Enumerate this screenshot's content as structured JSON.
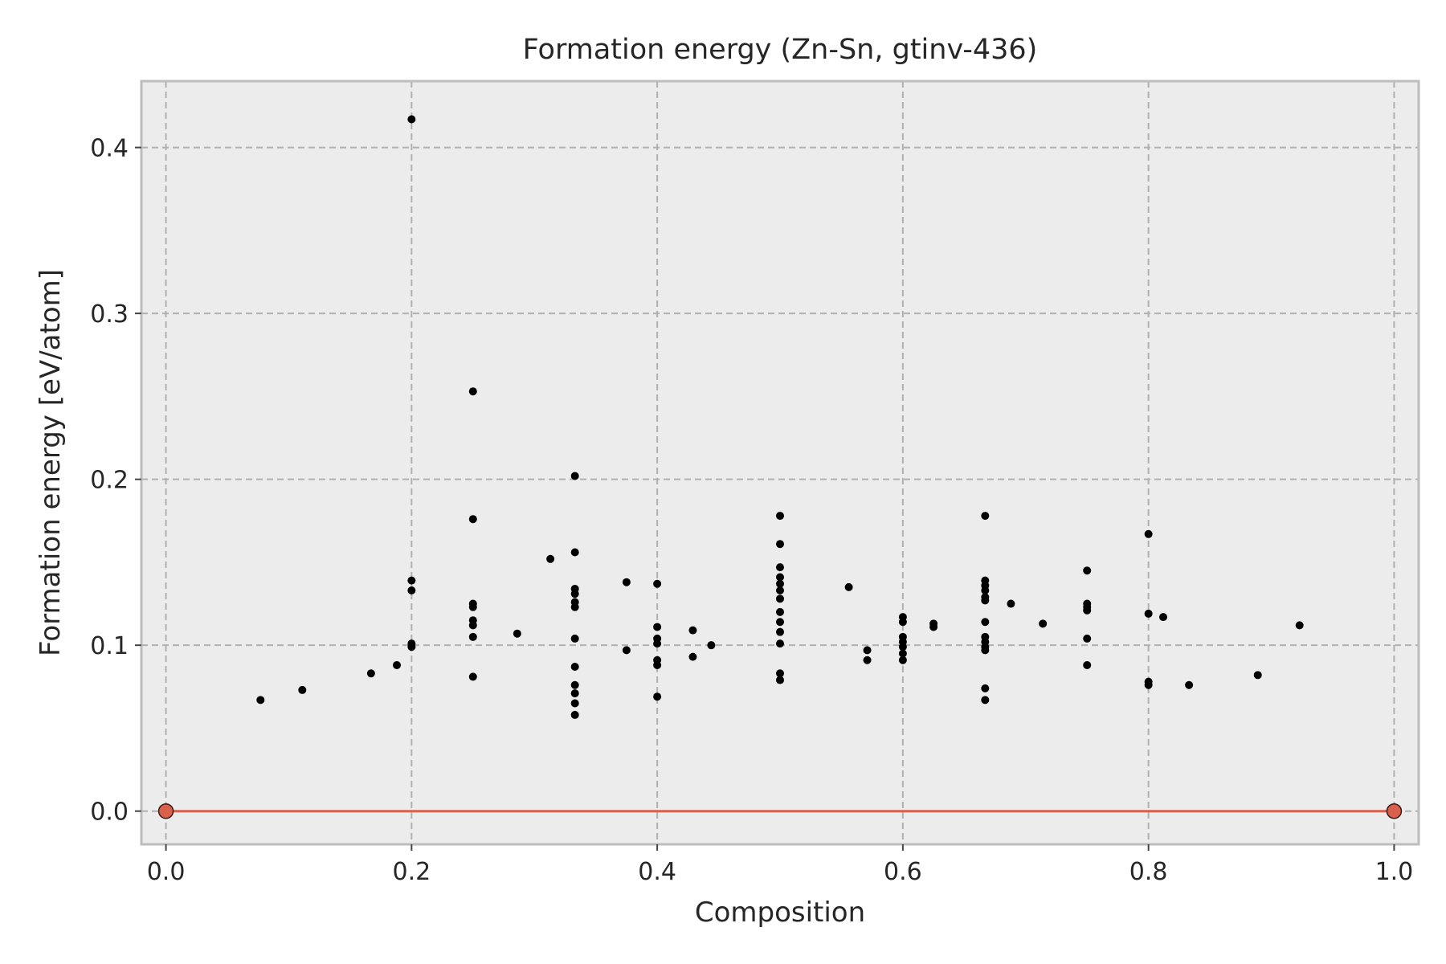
{
  "chart_data": {
    "type": "scatter",
    "title": "Formation energy (Zn-Sn, gtinv-436)",
    "xlabel": "Composition",
    "ylabel": "Formation energy [eV/atom]",
    "xlim": [
      -0.02,
      1.02
    ],
    "ylim": [
      -0.02,
      0.44
    ],
    "xticks": [
      0.0,
      0.2,
      0.4,
      0.6,
      0.8,
      1.0
    ],
    "xtick_labels": [
      "0.0",
      "0.2",
      "0.4",
      "0.6",
      "0.8",
      "1.0"
    ],
    "yticks": [
      0.0,
      0.1,
      0.2,
      0.3,
      0.4
    ],
    "ytick_labels": [
      "0.0",
      "0.1",
      "0.2",
      "0.3",
      "0.4"
    ],
    "grid": true,
    "colors": {
      "background": "#ececec",
      "grid": "#b0b0b0",
      "points": "#000000",
      "hull": "#d9604c",
      "hull_edge": "#3a1a14",
      "frame": "#bdbdbd"
    },
    "series": [
      {
        "type": "scatter",
        "points": [
          [
            0.077,
            0.067
          ],
          [
            0.111,
            0.073
          ],
          [
            0.167,
            0.083
          ],
          [
            0.188,
            0.088
          ],
          [
            0.2,
            0.417
          ],
          [
            0.2,
            0.139
          ],
          [
            0.2,
            0.133
          ],
          [
            0.2,
            0.101
          ],
          [
            0.2,
            0.099
          ],
          [
            0.25,
            0.253
          ],
          [
            0.25,
            0.176
          ],
          [
            0.25,
            0.125
          ],
          [
            0.25,
            0.123
          ],
          [
            0.25,
            0.115
          ],
          [
            0.25,
            0.112
          ],
          [
            0.25,
            0.105
          ],
          [
            0.25,
            0.081
          ],
          [
            0.286,
            0.107
          ],
          [
            0.313,
            0.152
          ],
          [
            0.333,
            0.202
          ],
          [
            0.333,
            0.156
          ],
          [
            0.333,
            0.134
          ],
          [
            0.333,
            0.131
          ],
          [
            0.333,
            0.126
          ],
          [
            0.333,
            0.123
          ],
          [
            0.333,
            0.104
          ],
          [
            0.333,
            0.087
          ],
          [
            0.333,
            0.076
          ],
          [
            0.333,
            0.071
          ],
          [
            0.333,
            0.065
          ],
          [
            0.333,
            0.058
          ],
          [
            0.375,
            0.138
          ],
          [
            0.375,
            0.097
          ],
          [
            0.4,
            0.137
          ],
          [
            0.4,
            0.111
          ],
          [
            0.4,
            0.104
          ],
          [
            0.4,
            0.101
          ],
          [
            0.4,
            0.091
          ],
          [
            0.4,
            0.088
          ],
          [
            0.4,
            0.069
          ],
          [
            0.429,
            0.109
          ],
          [
            0.429,
            0.093
          ],
          [
            0.444,
            0.1
          ],
          [
            0.5,
            0.178
          ],
          [
            0.5,
            0.161
          ],
          [
            0.5,
            0.147
          ],
          [
            0.5,
            0.141
          ],
          [
            0.5,
            0.137
          ],
          [
            0.5,
            0.133
          ],
          [
            0.5,
            0.128
          ],
          [
            0.5,
            0.12
          ],
          [
            0.5,
            0.114
          ],
          [
            0.5,
            0.108
          ],
          [
            0.5,
            0.101
          ],
          [
            0.5,
            0.083
          ],
          [
            0.5,
            0.079
          ],
          [
            0.556,
            0.135
          ],
          [
            0.571,
            0.097
          ],
          [
            0.571,
            0.091
          ],
          [
            0.6,
            0.117
          ],
          [
            0.6,
            0.114
          ],
          [
            0.6,
            0.105
          ],
          [
            0.6,
            0.102
          ],
          [
            0.6,
            0.099
          ],
          [
            0.6,
            0.095
          ],
          [
            0.6,
            0.091
          ],
          [
            0.625,
            0.113
          ],
          [
            0.625,
            0.111
          ],
          [
            0.667,
            0.178
          ],
          [
            0.667,
            0.139
          ],
          [
            0.667,
            0.136
          ],
          [
            0.667,
            0.133
          ],
          [
            0.667,
            0.129
          ],
          [
            0.667,
            0.127
          ],
          [
            0.667,
            0.114
          ],
          [
            0.667,
            0.105
          ],
          [
            0.667,
            0.102
          ],
          [
            0.667,
            0.099
          ],
          [
            0.667,
            0.097
          ],
          [
            0.667,
            0.074
          ],
          [
            0.667,
            0.067
          ],
          [
            0.688,
            0.125
          ],
          [
            0.714,
            0.113
          ],
          [
            0.75,
            0.145
          ],
          [
            0.75,
            0.125
          ],
          [
            0.75,
            0.123
          ],
          [
            0.75,
            0.121
          ],
          [
            0.75,
            0.104
          ],
          [
            0.75,
            0.088
          ],
          [
            0.8,
            0.167
          ],
          [
            0.8,
            0.119
          ],
          [
            0.8,
            0.078
          ],
          [
            0.8,
            0.076
          ],
          [
            0.812,
            0.117
          ],
          [
            0.833,
            0.076
          ],
          [
            0.889,
            0.082
          ],
          [
            0.923,
            0.112
          ]
        ]
      },
      {
        "type": "line",
        "points": [
          [
            0.0,
            0.0
          ],
          [
            1.0,
            0.0
          ]
        ]
      }
    ]
  }
}
